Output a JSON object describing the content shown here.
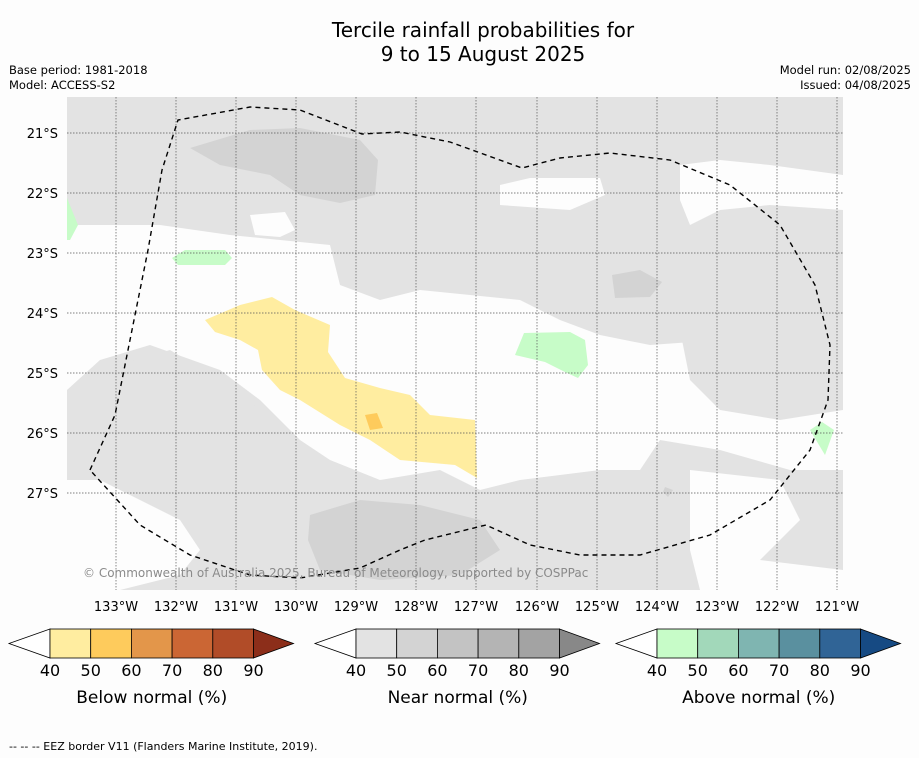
{
  "title_line1": "Tercile rainfall probabilities for",
  "title_line2": "9 to 15 August 2025",
  "meta_left": [
    "Base period: 1981-2018",
    "Model: ACCESS-S2"
  ],
  "meta_right": [
    "Model run: 02/08/2025",
    "Issued: 04/08/2025"
  ],
  "lat_labels": [
    "21°S",
    "22°S",
    "23°S",
    "24°S",
    "25°S",
    "26°S",
    "27°S"
  ],
  "lon_labels": [
    "133°W",
    "132°W",
    "131°W",
    "130°W",
    "129°W",
    "128°W",
    "127°W",
    "126°W",
    "125°W",
    "124°W",
    "123°W",
    "122°W",
    "121°W"
  ],
  "copyright": "© Commonwealth of Australia 2025, Bureau of Meteorology, supported by COSPPac",
  "colorbars": [
    {
      "label": "Below normal (%)",
      "colors": [
        "#ffeda0",
        "#fecb5c",
        "#e3964a",
        "#cb6634",
        "#b14c28",
        "#8c2e1a"
      ]
    },
    {
      "label": "Near normal (%)",
      "colors": [
        "#e3e3e3",
        "#d3d3d3",
        "#c3c3c3",
        "#b4b4b4",
        "#a3a3a3",
        "#888888"
      ]
    },
    {
      "label": "Above normal (%)",
      "colors": [
        "#c7fcc8",
        "#a2d8ba",
        "#7fb5b1",
        "#5a909f",
        "#306496",
        "#164a83"
      ]
    }
  ],
  "colorbar_ticks": [
    "40",
    "50",
    "60",
    "70",
    "80",
    "90"
  ],
  "footer": "--  --  -- EEZ border V11 (Flanders Marine Institute, 2019)."
}
